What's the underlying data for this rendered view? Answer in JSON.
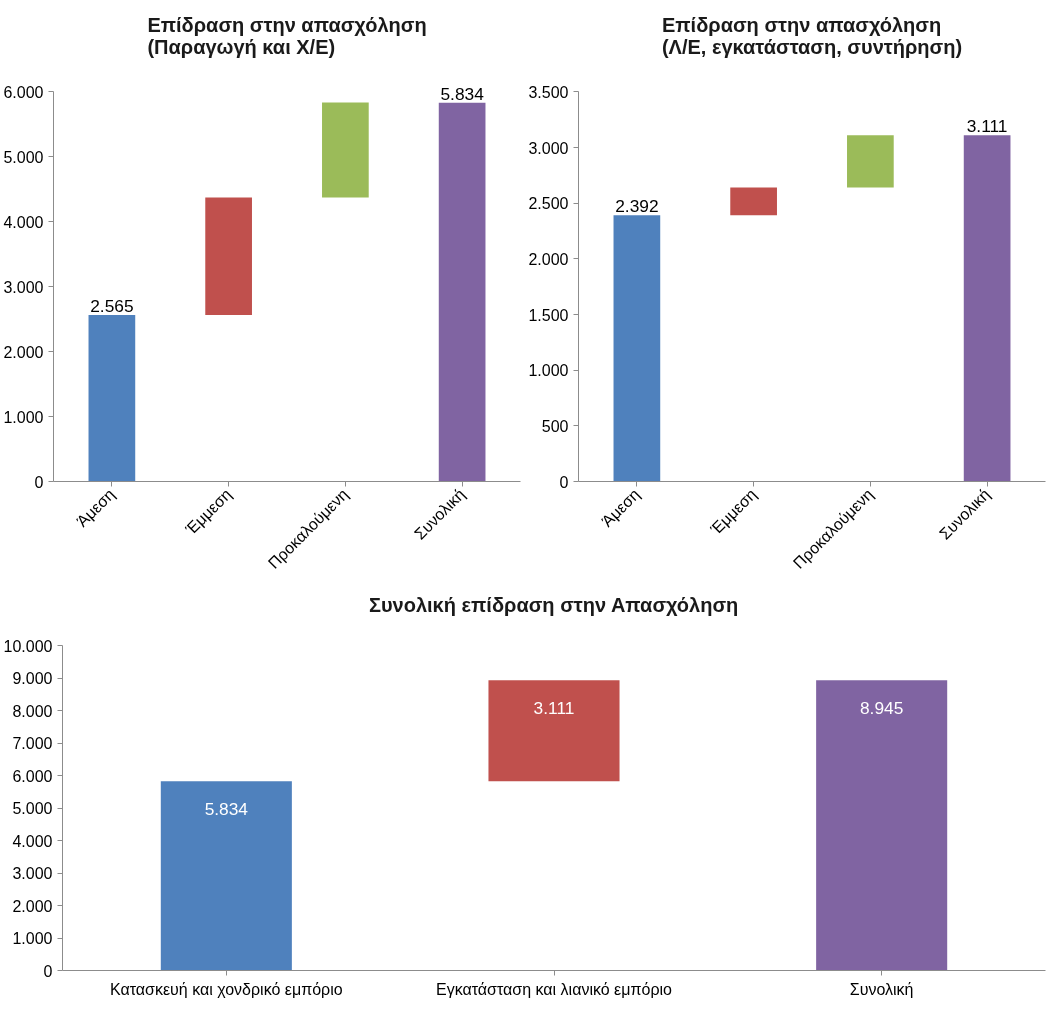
{
  "chart_data": [
    {
      "type": "bar",
      "title": "Επίδραση στην απασχόληση\n(Παραγωγή και Χ/Ε)",
      "categories": [
        "Άμεση",
        "Έμμεση",
        "Προκαλούμενη",
        "Συνολική"
      ],
      "values": [
        2565,
        1810,
        1460,
        5834
      ],
      "base": [
        0,
        2565,
        4375,
        0
      ],
      "colors": [
        "#4f81bd",
        "#c0504d",
        "#9bbb59",
        "#8064a2"
      ],
      "value_labels": [
        "2.565",
        null,
        null,
        "5.834"
      ],
      "ylim": [
        0,
        6000
      ],
      "yticks": [
        0,
        {
          "value": 1000,
          "label": "1.000"
        },
        {
          "value": 2000,
          "label": "2.000"
        },
        {
          "value": 3000,
          "label": "3.000"
        },
        {
          "value": 4000,
          "label": "4.000"
        },
        {
          "value": 5000,
          "label": "5.000"
        },
        {
          "value": 6000,
          "label": "6.000"
        }
      ],
      "grid": false
    },
    {
      "type": "bar",
      "title": "Επίδραση στην απασχόληση\n(Λ/Ε, εγκατάσταση, συντήρηση)",
      "categories": [
        "Άμεση",
        "Έμμεση",
        "Προκαλούμενη",
        "Συνολική"
      ],
      "values": [
        2392,
        250,
        470,
        3111
      ],
      "base": [
        0,
        2392,
        2640,
        0
      ],
      "colors": [
        "#4f81bd",
        "#c0504d",
        "#9bbb59",
        "#8064a2"
      ],
      "value_labels": [
        "2.392",
        null,
        null,
        "3.111"
      ],
      "ylim": [
        0,
        3500
      ],
      "yticks": [
        0,
        500,
        {
          "value": 1000,
          "label": "1.000"
        },
        {
          "value": 1500,
          "label": "1.500"
        },
        {
          "value": 2000,
          "label": "2.000"
        },
        {
          "value": 2500,
          "label": "2.500"
        },
        {
          "value": 3000,
          "label": "3.000"
        },
        {
          "value": 3500,
          "label": "3.500"
        }
      ],
      "grid": false
    },
    {
      "type": "bar",
      "title": "Συνολική επίδραση στην Απασχόληση",
      "categories": [
        "Κατασκευή και χονδρικό εμπόριο",
        "Εγκατάσταση και λιανικό εμπόριο",
        "Συνολική"
      ],
      "values": [
        5834,
        3111,
        8945
      ],
      "base": [
        0,
        5834,
        0
      ],
      "colors": [
        "#4f81bd",
        "#c0504d",
        "#8064a2"
      ],
      "value_labels": [
        "5.834",
        "3.111",
        "8.945"
      ],
      "ylim": [
        0,
        10000
      ],
      "yticks": [
        0,
        {
          "value": 1000,
          "label": "1.000"
        },
        {
          "value": 2000,
          "label": "2.000"
        },
        {
          "value": 3000,
          "label": "3.000"
        },
        {
          "value": 4000,
          "label": "4.000"
        },
        {
          "value": 5000,
          "label": "5.000"
        },
        {
          "value": 6000,
          "label": "6.000"
        },
        {
          "value": 7000,
          "label": "7.000"
        },
        {
          "value": 8000,
          "label": "8.000"
        },
        {
          "value": 9000,
          "label": "9.000"
        },
        {
          "value": 10000,
          "label": "10.000"
        }
      ],
      "grid": false
    }
  ]
}
